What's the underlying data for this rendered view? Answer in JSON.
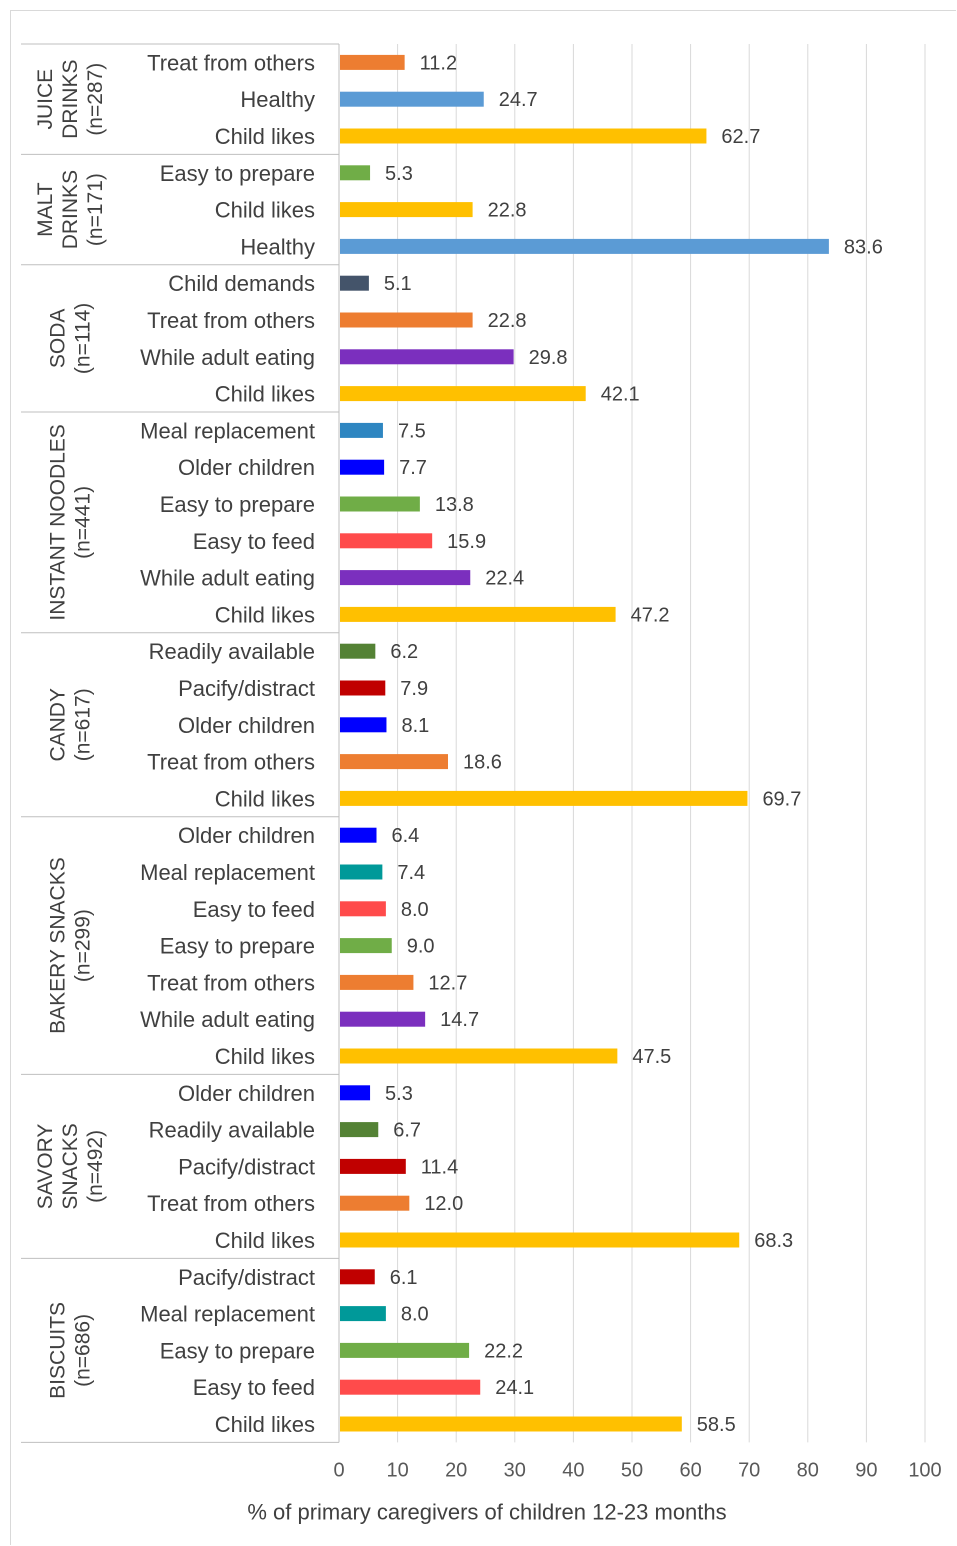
{
  "chart_data": {
    "type": "bar",
    "orientation": "horizontal",
    "xlabel": "% of primary caregivers of children 12-23 months",
    "xlim": [
      0,
      100
    ],
    "xticks": [
      "0",
      "10",
      "20",
      "30",
      "40",
      "50",
      "60",
      "70",
      "80",
      "90",
      "100"
    ],
    "grid": true,
    "groups": [
      {
        "label": [
          "JUICE",
          "DRINKS",
          "(n=287)"
        ],
        "bars": [
          {
            "label": "Treat from others",
            "value": 11.2,
            "value_text": "11.2",
            "color": "#ED7D31"
          },
          {
            "label": "Healthy",
            "value": 24.7,
            "value_text": "24.7",
            "color": "#5B9BD5"
          },
          {
            "label": "Child likes",
            "value": 62.7,
            "value_text": "62.7",
            "color": "#FFC000"
          }
        ]
      },
      {
        "label": [
          "MALT",
          "DRINKS",
          "(n=171)"
        ],
        "bars": [
          {
            "label": "Easy to prepare",
            "value": 5.3,
            "value_text": "5.3",
            "color": "#70AD47"
          },
          {
            "label": "Child likes",
            "value": 22.8,
            "value_text": "22.8",
            "color": "#FFC000"
          },
          {
            "label": "Healthy",
            "value": 83.6,
            "value_text": "83.6",
            "color": "#5B9BD5"
          }
        ]
      },
      {
        "label": [
          "SODA",
          "(n=114)"
        ],
        "bars": [
          {
            "label": "Child demands",
            "value": 5.1,
            "value_text": "5.1",
            "color": "#44546A"
          },
          {
            "label": "Treat from others",
            "value": 22.8,
            "value_text": "22.8",
            "color": "#ED7D31"
          },
          {
            "label": "While adult eating",
            "value": 29.8,
            "value_text": "29.8",
            "color": "#7B2FBE"
          },
          {
            "label": "Child likes",
            "value": 42.1,
            "value_text": "42.1",
            "color": "#FFC000"
          }
        ]
      },
      {
        "label": [
          "INSTANT NOODLES",
          "(n=441)"
        ],
        "bars": [
          {
            "label": "Meal replacement",
            "value": 7.5,
            "value_text": "7.5",
            "color": "#2E86C1"
          },
          {
            "label": "Older children",
            "value": 7.7,
            "value_text": "7.7",
            "color": "#0000FF"
          },
          {
            "label": "Easy to prepare",
            "value": 13.8,
            "value_text": "13.8",
            "color": "#70AD47"
          },
          {
            "label": "Easy to feed",
            "value": 15.9,
            "value_text": "15.9",
            "color": "#FF4B4B"
          },
          {
            "label": "While adult eating",
            "value": 22.4,
            "value_text": "22.4",
            "color": "#7B2FBE"
          },
          {
            "label": "Child likes",
            "value": 47.2,
            "value_text": "47.2",
            "color": "#FFC000"
          }
        ]
      },
      {
        "label": [
          "CANDY",
          "(n=617)"
        ],
        "bars": [
          {
            "label": "Readily available",
            "value": 6.2,
            "value_text": "6.2",
            "color": "#548235"
          },
          {
            "label": "Pacify/distract",
            "value": 7.9,
            "value_text": "7.9",
            "color": "#C00000"
          },
          {
            "label": "Older children",
            "value": 8.1,
            "value_text": "8.1",
            "color": "#0000FF"
          },
          {
            "label": "Treat from others",
            "value": 18.6,
            "value_text": "18.6",
            "color": "#ED7D31"
          },
          {
            "label": "Child likes",
            "value": 69.7,
            "value_text": "69.7",
            "color": "#FFC000"
          }
        ]
      },
      {
        "label": [
          "BAKERY SNACKS",
          "(n=299)"
        ],
        "bars": [
          {
            "label": "Older children",
            "value": 6.4,
            "value_text": "6.4",
            "color": "#0000FF"
          },
          {
            "label": "Meal replacement",
            "value": 7.4,
            "value_text": "7.4",
            "color": "#009999"
          },
          {
            "label": "Easy to feed",
            "value": 8.0,
            "value_text": "8.0",
            "color": "#FF4B4B"
          },
          {
            "label": "Easy to prepare",
            "value": 9.0,
            "value_text": "9.0",
            "color": "#70AD47"
          },
          {
            "label": "Treat from others",
            "value": 12.7,
            "value_text": "12.7",
            "color": "#ED7D31"
          },
          {
            "label": "While adult eating",
            "value": 14.7,
            "value_text": "14.7",
            "color": "#7B2FBE"
          },
          {
            "label": "Child likes",
            "value": 47.5,
            "value_text": "47.5",
            "color": "#FFC000"
          }
        ]
      },
      {
        "label": [
          "SAVORY",
          "SNACKS",
          "(n=492)"
        ],
        "bars": [
          {
            "label": "Older children",
            "value": 5.3,
            "value_text": "5.3",
            "color": "#0000FF"
          },
          {
            "label": "Readily available",
            "value": 6.7,
            "value_text": "6.7",
            "color": "#548235"
          },
          {
            "label": "Pacify/distract",
            "value": 11.4,
            "value_text": "11.4",
            "color": "#C00000"
          },
          {
            "label": "Treat from others",
            "value": 12.0,
            "value_text": "12.0",
            "color": "#ED7D31"
          },
          {
            "label": "Child likes",
            "value": 68.3,
            "value_text": "68.3",
            "color": "#FFC000"
          }
        ]
      },
      {
        "label": [
          "BISCUITS",
          "(n=686)"
        ],
        "bars": [
          {
            "label": "Pacify/distract",
            "value": 6.1,
            "value_text": "6.1",
            "color": "#C00000"
          },
          {
            "label": "Meal replacement",
            "value": 8.0,
            "value_text": "8.0",
            "color": "#009999"
          },
          {
            "label": "Easy to prepare",
            "value": 22.2,
            "value_text": "22.2",
            "color": "#70AD47"
          },
          {
            "label": "Easy to feed",
            "value": 24.1,
            "value_text": "24.1",
            "color": "#FF4B4B"
          },
          {
            "label": "Child likes",
            "value": 58.5,
            "value_text": "58.5",
            "color": "#FFC000"
          }
        ]
      }
    ]
  }
}
